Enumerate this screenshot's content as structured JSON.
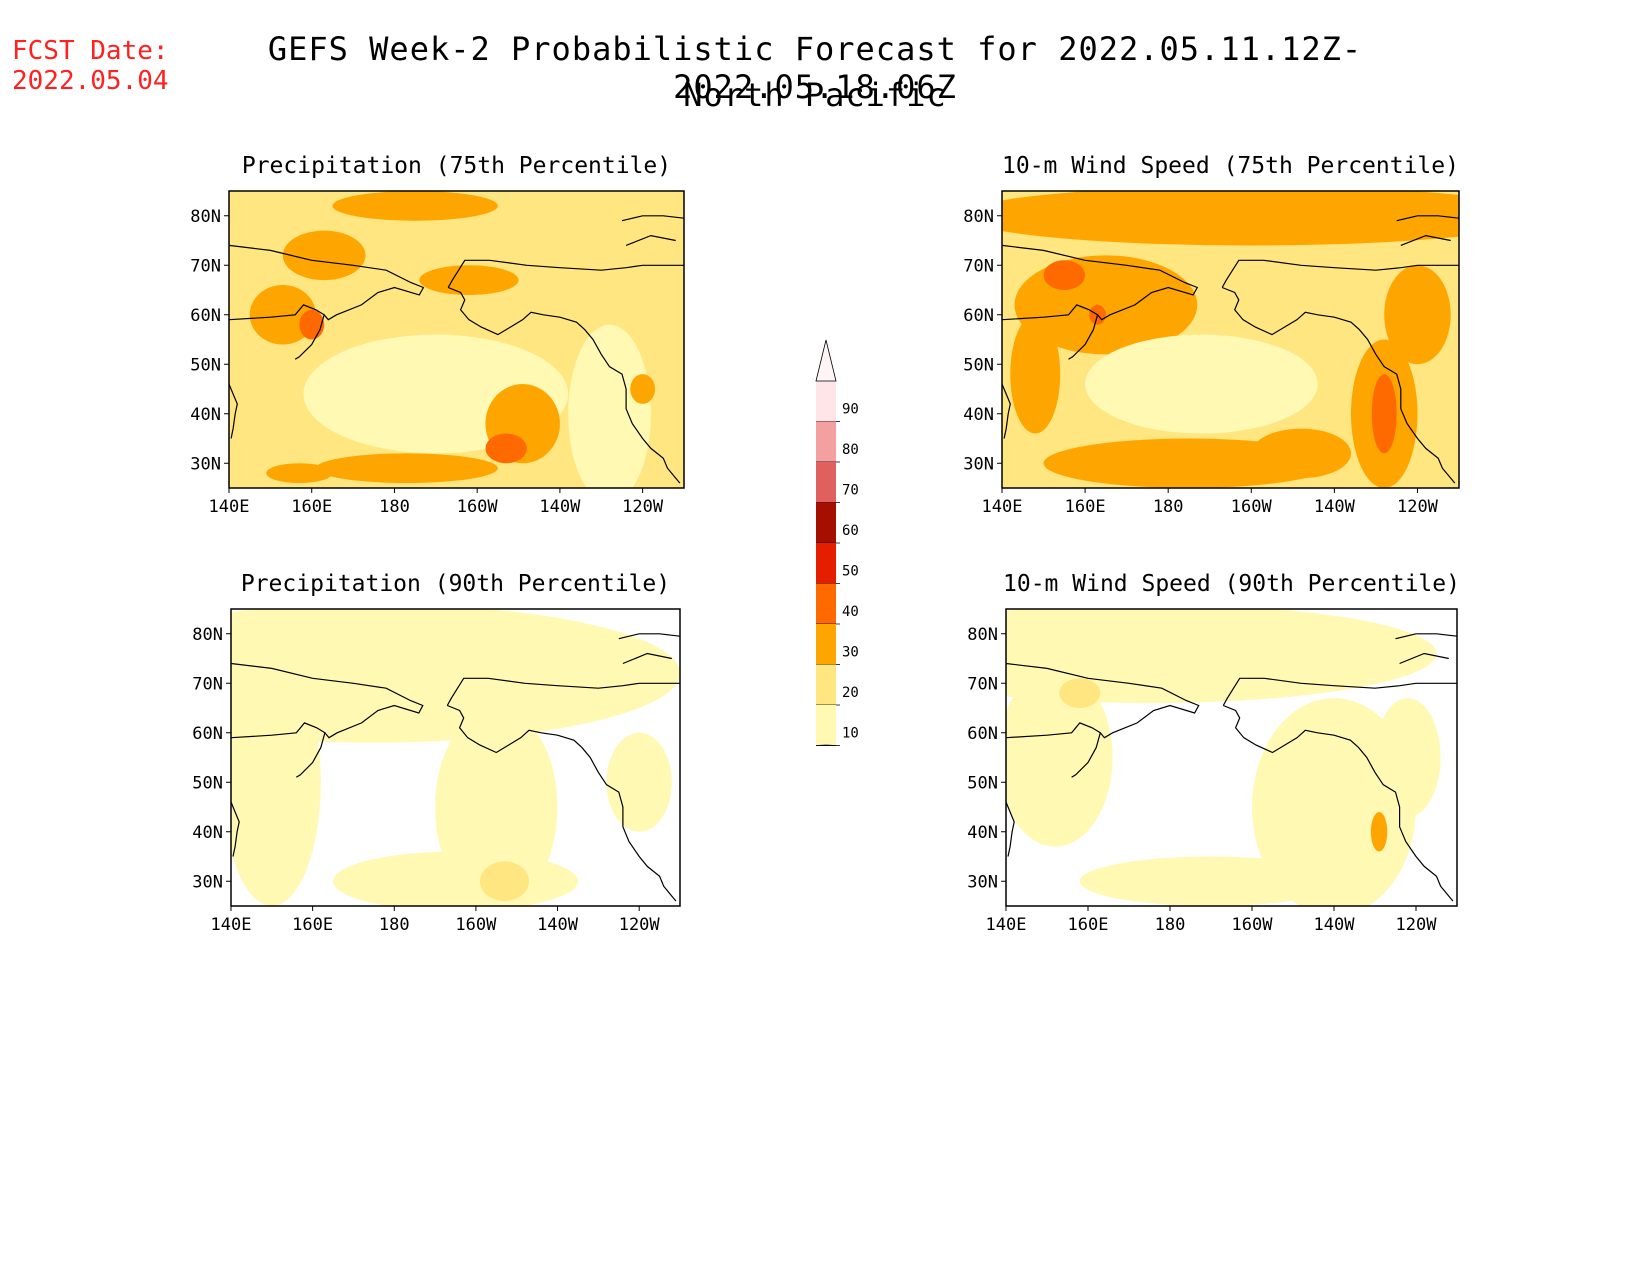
{
  "fcst_label": "FCST Date:",
  "fcst_date": "2022.05.04",
  "title": "GEFS Week-2 Probabilistic Forecast for 2022.05.11.12Z-2022.05.18.06Z",
  "subtitle": "North Pacific",
  "lon_ticks": [
    "140E",
    "160E",
    "180",
    "160W",
    "140W",
    "120W"
  ],
  "lat_ticks": [
    "80N",
    "70N",
    "60N",
    "50N",
    "40N",
    "30N"
  ],
  "panels": [
    {
      "title": "Precipitation (75th Percentile)"
    },
    {
      "title": "10-m Wind Speed (75th Percentile)"
    },
    {
      "title": "Precipitation (90th Percentile)"
    },
    {
      "title": "10-m Wind Speed (90th Percentile)"
    }
  ],
  "colorbar": {
    "labels": [
      "90",
      "80",
      "70",
      "60",
      "50",
      "40",
      "30",
      "20",
      "10"
    ],
    "colors": {
      "10": "#fff9b3",
      "20": "#ffe680",
      "30": "#ffa500",
      "40": "#ff6a00",
      "50": "#e61e00",
      "60": "#a50f00",
      "70": "#e06060",
      "80": "#f4a0a0",
      "90": "#ffe4e8"
    }
  },
  "colors": {
    "fcst": "#ff2020",
    "land_outline": "#000000"
  }
}
